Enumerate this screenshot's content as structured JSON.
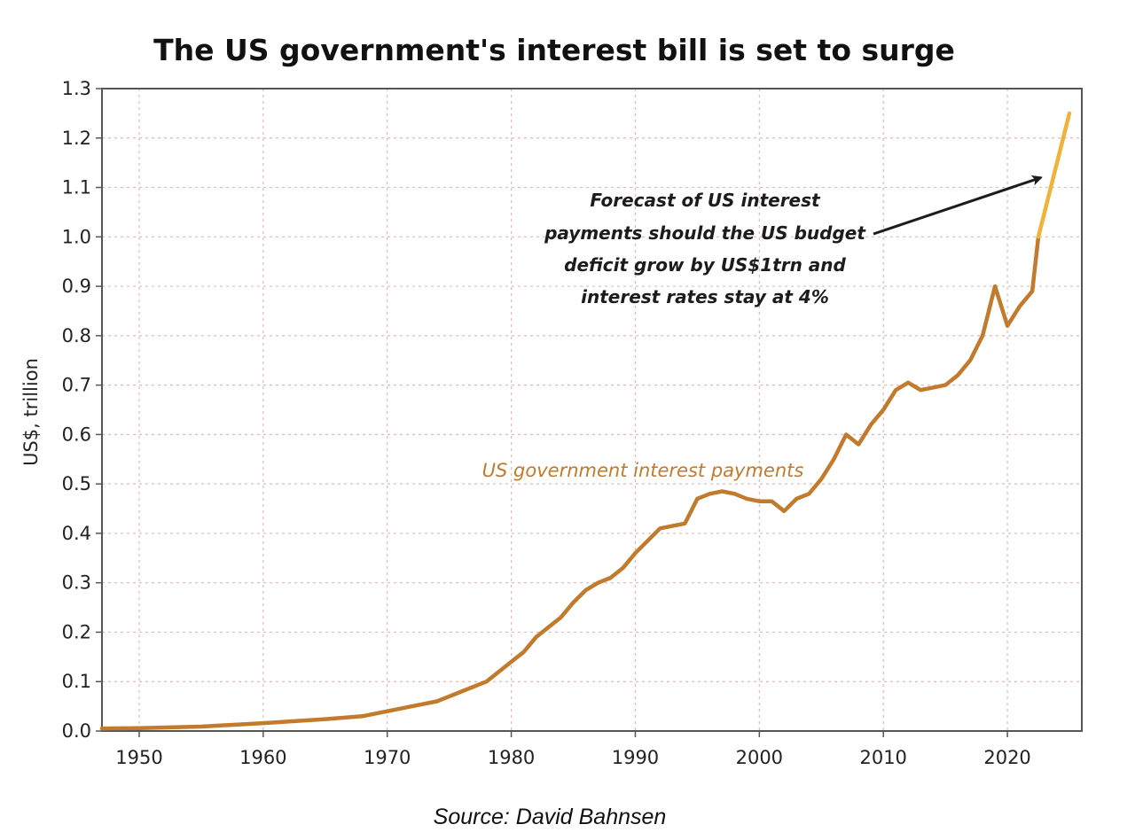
{
  "chart_data": {
    "type": "line",
    "title": "The US government's interest bill is set to surge",
    "ylabel": "US$, trillion",
    "xlabel": "",
    "xlim": [
      1947,
      2026
    ],
    "ylim": [
      0.0,
      1.3
    ],
    "x_ticks": [
      "1950",
      "1960",
      "1970",
      "1980",
      "1990",
      "2000",
      "2010",
      "2020"
    ],
    "y_ticks": [
      "0.0",
      "0.1",
      "0.2",
      "0.3",
      "0.4",
      "0.5",
      "0.6",
      "0.7",
      "0.8",
      "0.9",
      "1.0",
      "1.1",
      "1.2",
      "1.3"
    ],
    "grid": true,
    "series": [
      {
        "name": "US government interest payments",
        "color": "#c27a2c",
        "points": [
          [
            1947,
            0.005
          ],
          [
            1950,
            0.006
          ],
          [
            1955,
            0.009
          ],
          [
            1960,
            0.016
          ],
          [
            1965,
            0.024
          ],
          [
            1968,
            0.03
          ],
          [
            1970,
            0.04
          ],
          [
            1972,
            0.05
          ],
          [
            1974,
            0.06
          ],
          [
            1976,
            0.08
          ],
          [
            1978,
            0.1
          ],
          [
            1980,
            0.14
          ],
          [
            1981,
            0.16
          ],
          [
            1982,
            0.19
          ],
          [
            1983,
            0.21
          ],
          [
            1984,
            0.23
          ],
          [
            1985,
            0.26
          ],
          [
            1986,
            0.285
          ],
          [
            1987,
            0.3
          ],
          [
            1988,
            0.31
          ],
          [
            1989,
            0.33
          ],
          [
            1990,
            0.36
          ],
          [
            1991,
            0.385
          ],
          [
            1992,
            0.41
          ],
          [
            1993,
            0.415
          ],
          [
            1994,
            0.42
          ],
          [
            1995,
            0.47
          ],
          [
            1996,
            0.48
          ],
          [
            1997,
            0.485
          ],
          [
            1998,
            0.48
          ],
          [
            1999,
            0.47
          ],
          [
            2000,
            0.465
          ],
          [
            2001,
            0.465
          ],
          [
            2002,
            0.445
          ],
          [
            2003,
            0.47
          ],
          [
            2004,
            0.48
          ],
          [
            2005,
            0.51
          ],
          [
            2006,
            0.55
          ],
          [
            2007,
            0.6
          ],
          [
            2008,
            0.58
          ],
          [
            2009,
            0.62
          ],
          [
            2010,
            0.65
          ],
          [
            2011,
            0.69
          ],
          [
            2012,
            0.705
          ],
          [
            2013,
            0.69
          ],
          [
            2014,
            0.695
          ],
          [
            2015,
            0.7
          ],
          [
            2016,
            0.72
          ],
          [
            2017,
            0.75
          ],
          [
            2018,
            0.8
          ],
          [
            2019,
            0.9
          ],
          [
            2020,
            0.82
          ],
          [
            2021,
            0.86
          ],
          [
            2022,
            0.89
          ],
          [
            2022.5,
            1.0
          ]
        ]
      },
      {
        "name": "",
        "color": "#f0b33a",
        "points": [
          [
            2022.5,
            1.0
          ],
          [
            2025,
            1.25
          ]
        ]
      }
    ],
    "annotations": [
      {
        "lines": [
          "Forecast of US interest",
          "payments should the US budget",
          "deficit grow by US$1trn and",
          "interest rates stay at 4%"
        ],
        "arrow_to": [
          2023,
          1.12
        ]
      }
    ]
  },
  "source_note": "Source: David Bahnsen"
}
